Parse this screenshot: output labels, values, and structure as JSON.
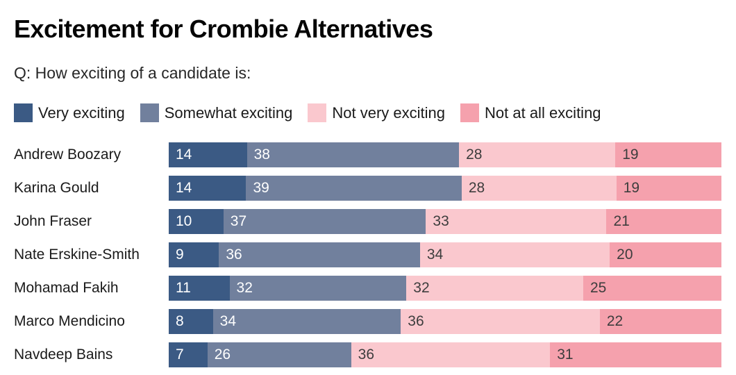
{
  "title": "Excitement for Crombie Alternatives",
  "subtitle": "Q: How exciting of a candidate is:",
  "chart_data": {
    "type": "bar",
    "orientation": "horizontal",
    "stacked": true,
    "unit": "percent",
    "legend_position": "top",
    "value_labels": "inside-start",
    "categories": [
      "Andrew Boozary",
      "Karina Gould",
      "John Fraser",
      "Nate Erskine-Smith",
      "Mohamad Fakih",
      "Marco Mendicino",
      "Navdeep Bains"
    ],
    "series": [
      {
        "name": "Very exciting",
        "color": "#3b5a84",
        "label_color": "#ffffff",
        "values": [
          14,
          14,
          10,
          9,
          11,
          8,
          7
        ]
      },
      {
        "name": "Somewhat exciting",
        "color": "#71809d",
        "label_color": "#ffffff",
        "values": [
          38,
          39,
          37,
          36,
          32,
          34,
          26
        ]
      },
      {
        "name": "Not very exciting",
        "color": "#fac8ce",
        "label_color": "#3d3d3d",
        "values": [
          28,
          28,
          33,
          34,
          32,
          36,
          36
        ]
      },
      {
        "name": "Not at all exciting",
        "color": "#f5a1ad",
        "label_color": "#3d3d3d",
        "values": [
          19,
          19,
          21,
          20,
          25,
          22,
          31
        ]
      }
    ]
  }
}
